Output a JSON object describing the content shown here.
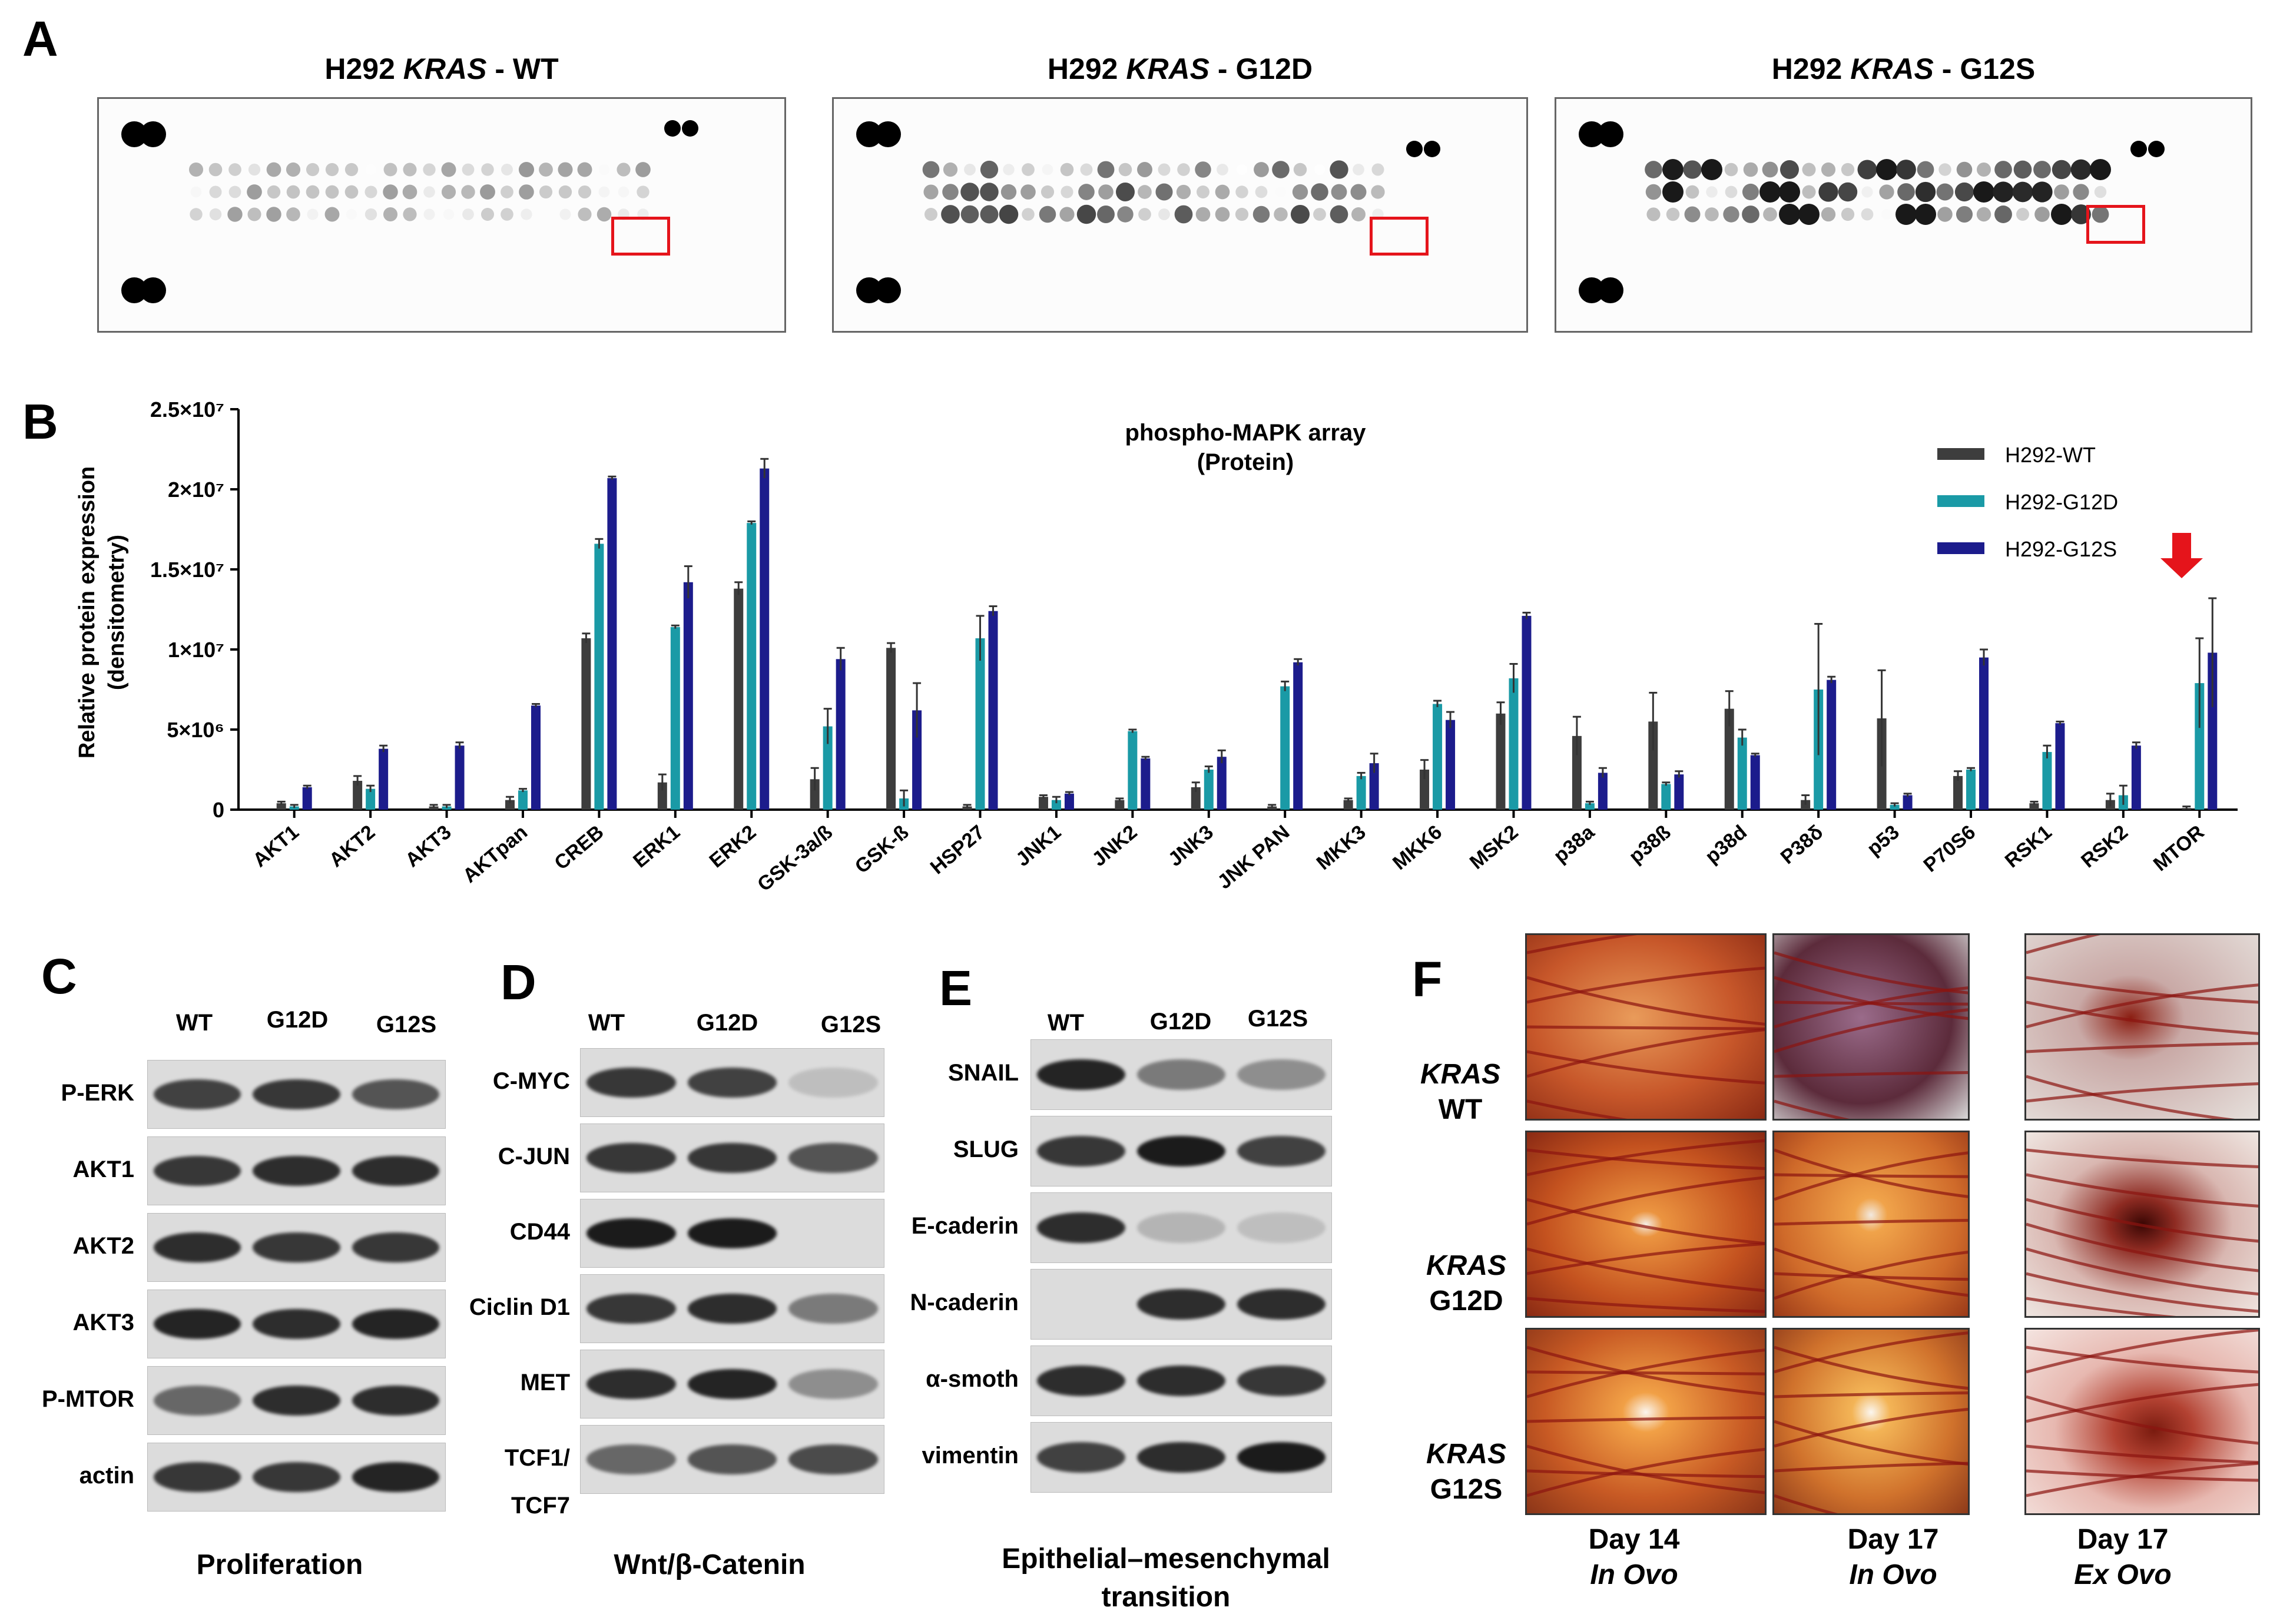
{
  "panel_labels": {
    "A": "A",
    "B": "B",
    "C": "C",
    "D": "D",
    "E": "E",
    "F": "F"
  },
  "panelA": {
    "arrays": [
      {
        "prefix": "H292 ",
        "gene": "KRAS",
        "suffix": " - WT"
      },
      {
        "prefix": "H292 ",
        "gene": "KRAS",
        "suffix": " - G12D"
      },
      {
        "prefix": "H292 ",
        "gene": "KRAS",
        "suffix": " - G12S"
      }
    ]
  },
  "chart_data": {
    "type": "bar",
    "title": "phospho-MAPK array",
    "subtitle": "(Protein)",
    "ylabel": "Relative protein expression",
    "ylabel2": "(densitometry)",
    "ylim": [
      0,
      25000000
    ],
    "yticks": [
      {
        "value": 0,
        "label": "0"
      },
      {
        "value": 5000000,
        "label": "5×10⁶"
      },
      {
        "value": 10000000,
        "label": "1×10⁷"
      },
      {
        "value": 15000000,
        "label": "1.5×10⁷"
      },
      {
        "value": 20000000,
        "label": "2×10⁷"
      },
      {
        "value": 25000000,
        "label": "2.5×10⁷"
      }
    ],
    "categories": [
      "AKT1",
      "AKT2",
      "AKT3",
      "AKTpan",
      "CREB",
      "ERK1",
      "ERK2",
      "GSK-3a/ß",
      "GSK-ß",
      "HSP27",
      "JNK1",
      "JNK2",
      "JNK3",
      "JNK PAN",
      "MKK3",
      "MKK6",
      "MSK2",
      "p38a",
      "p38ß",
      "p38d",
      "P38δ",
      "p53",
      "P70S6",
      "RSK1",
      "RSK2",
      "MTOR"
    ],
    "series": [
      {
        "name": "H292-WT",
        "color": "#3d3d3d",
        "values": [
          400000,
          1800000,
          200000,
          600000,
          10700000,
          1700000,
          13800000,
          1900000,
          10100000,
          200000,
          800000,
          600000,
          1400000,
          200000,
          600000,
          2500000,
          6000000,
          4600000,
          5500000,
          6300000,
          600000,
          5700000,
          2100000,
          400000,
          600000,
          100000
        ],
        "errors": [
          100000,
          300000,
          100000,
          200000,
          300000,
          500000,
          400000,
          700000,
          300000,
          100000,
          100000,
          100000,
          300000,
          100000,
          100000,
          600000,
          700000,
          1200000,
          1800000,
          1100000,
          300000,
          3000000,
          300000,
          100000,
          400000,
          100000
        ]
      },
      {
        "name": "H292-G12D",
        "color": "#1a9aa6",
        "values": [
          200000,
          1300000,
          200000,
          1200000,
          16600000,
          11400000,
          17900000,
          5200000,
          700000,
          10700000,
          600000,
          4900000,
          2500000,
          7700000,
          2100000,
          6600000,
          8200000,
          400000,
          1600000,
          4500000,
          7500000,
          300000,
          2500000,
          3600000,
          900000,
          7900000
        ],
        "errors": [
          100000,
          200000,
          100000,
          100000,
          300000,
          100000,
          100000,
          1100000,
          500000,
          1400000,
          200000,
          100000,
          200000,
          300000,
          200000,
          200000,
          900000,
          100000,
          100000,
          500000,
          4100000,
          100000,
          100000,
          400000,
          600000,
          2800000
        ]
      },
      {
        "name": "H292-G12S",
        "color": "#1c1c8c",
        "values": [
          1400000,
          3800000,
          4000000,
          6500000,
          20700000,
          14200000,
          21300000,
          9400000,
          6200000,
          12400000,
          1000000,
          3200000,
          3300000,
          9200000,
          2900000,
          5600000,
          12100000,
          2300000,
          2200000,
          3400000,
          8100000,
          900000,
          9500000,
          5400000,
          4000000,
          9800000
        ],
        "errors": [
          100000,
          200000,
          200000,
          100000,
          100000,
          1000000,
          600000,
          700000,
          1700000,
          300000,
          100000,
          100000,
          400000,
          200000,
          600000,
          500000,
          200000,
          300000,
          200000,
          100000,
          200000,
          100000,
          500000,
          100000,
          200000,
          3400000
        ]
      }
    ]
  },
  "panelC": {
    "cols": [
      "WT",
      "G12D",
      "G12S"
    ],
    "rows": [
      "P-ERK",
      "AKT1",
      "AKT2",
      "AKT3",
      "P-MTOR",
      "actin"
    ],
    "caption": "Proliferation"
  },
  "panelD": {
    "cols": [
      "WT",
      "G12D",
      "G12S"
    ],
    "rows": [
      "C-MYC",
      "C-JUN",
      "CD44",
      "Ciclin D1",
      "MET",
      "TCF1/",
      "TCF7"
    ],
    "caption": "Wnt/β-Catenin"
  },
  "panelE": {
    "cols": [
      "WT",
      "G12D",
      "G12S"
    ],
    "rows": [
      "SNAIL",
      "SLUG",
      "E-caderin",
      "N-caderin",
      "α-smoth",
      "vimentin"
    ],
    "caption_line1": "Epithelial–mesenchymal",
    "caption_line2": "transition"
  },
  "panelF": {
    "rows": [
      {
        "gene": "KRAS",
        "variant": "WT"
      },
      {
        "gene": "KRAS",
        "variant": "G12D"
      },
      {
        "gene": "KRAS",
        "variant": "G12S"
      }
    ],
    "cols": [
      {
        "day": "Day 14",
        "mode": "In Ovo"
      },
      {
        "day": "Day 17",
        "mode": "In Ovo"
      },
      {
        "day": "Day 17",
        "mode": "Ex Ovo"
      }
    ]
  }
}
